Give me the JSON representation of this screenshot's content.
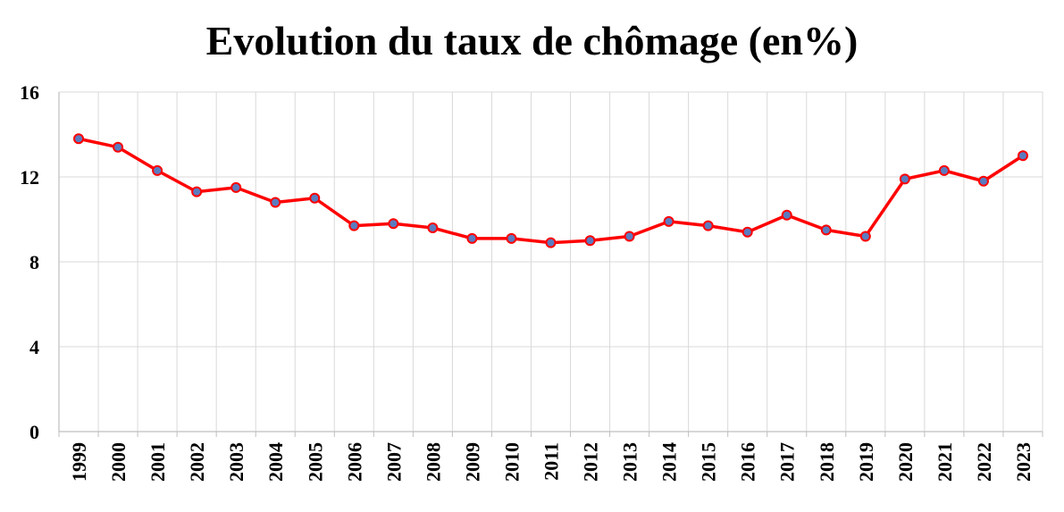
{
  "chart_data": {
    "type": "line",
    "title": "Evolution du taux de chômage (en%)",
    "xlabel": "",
    "ylabel": "",
    "categories": [
      "1999",
      "2000",
      "2001",
      "2002",
      "2003",
      "2004",
      "2005",
      "2006",
      "2007",
      "2008",
      "2009",
      "2010",
      "2011",
      "2012",
      "2013",
      "2014",
      "2015",
      "2016",
      "2017",
      "2018",
      "2019",
      "2020",
      "2021",
      "2022",
      "2023"
    ],
    "series": [
      {
        "values": [
          13.8,
          13.4,
          12.3,
          11.3,
          11.5,
          10.8,
          11.0,
          9.7,
          9.8,
          9.6,
          9.1,
          9.1,
          8.9,
          9.0,
          9.2,
          9.9,
          9.7,
          9.4,
          10.2,
          9.5,
          9.2,
          11.9,
          12.3,
          11.8,
          13.0
        ]
      }
    ],
    "ylim": [
      0,
      16
    ],
    "yticks": [
      "0",
      "4",
      "8",
      "12",
      "16"
    ],
    "grid": true,
    "legend": "none",
    "colors": {
      "line": "#ff0000",
      "marker_fill": "#5b7bc0",
      "marker_stroke": "#ff0000",
      "grid": "#d9d9d9",
      "axis": "#bfbfbf"
    }
  }
}
